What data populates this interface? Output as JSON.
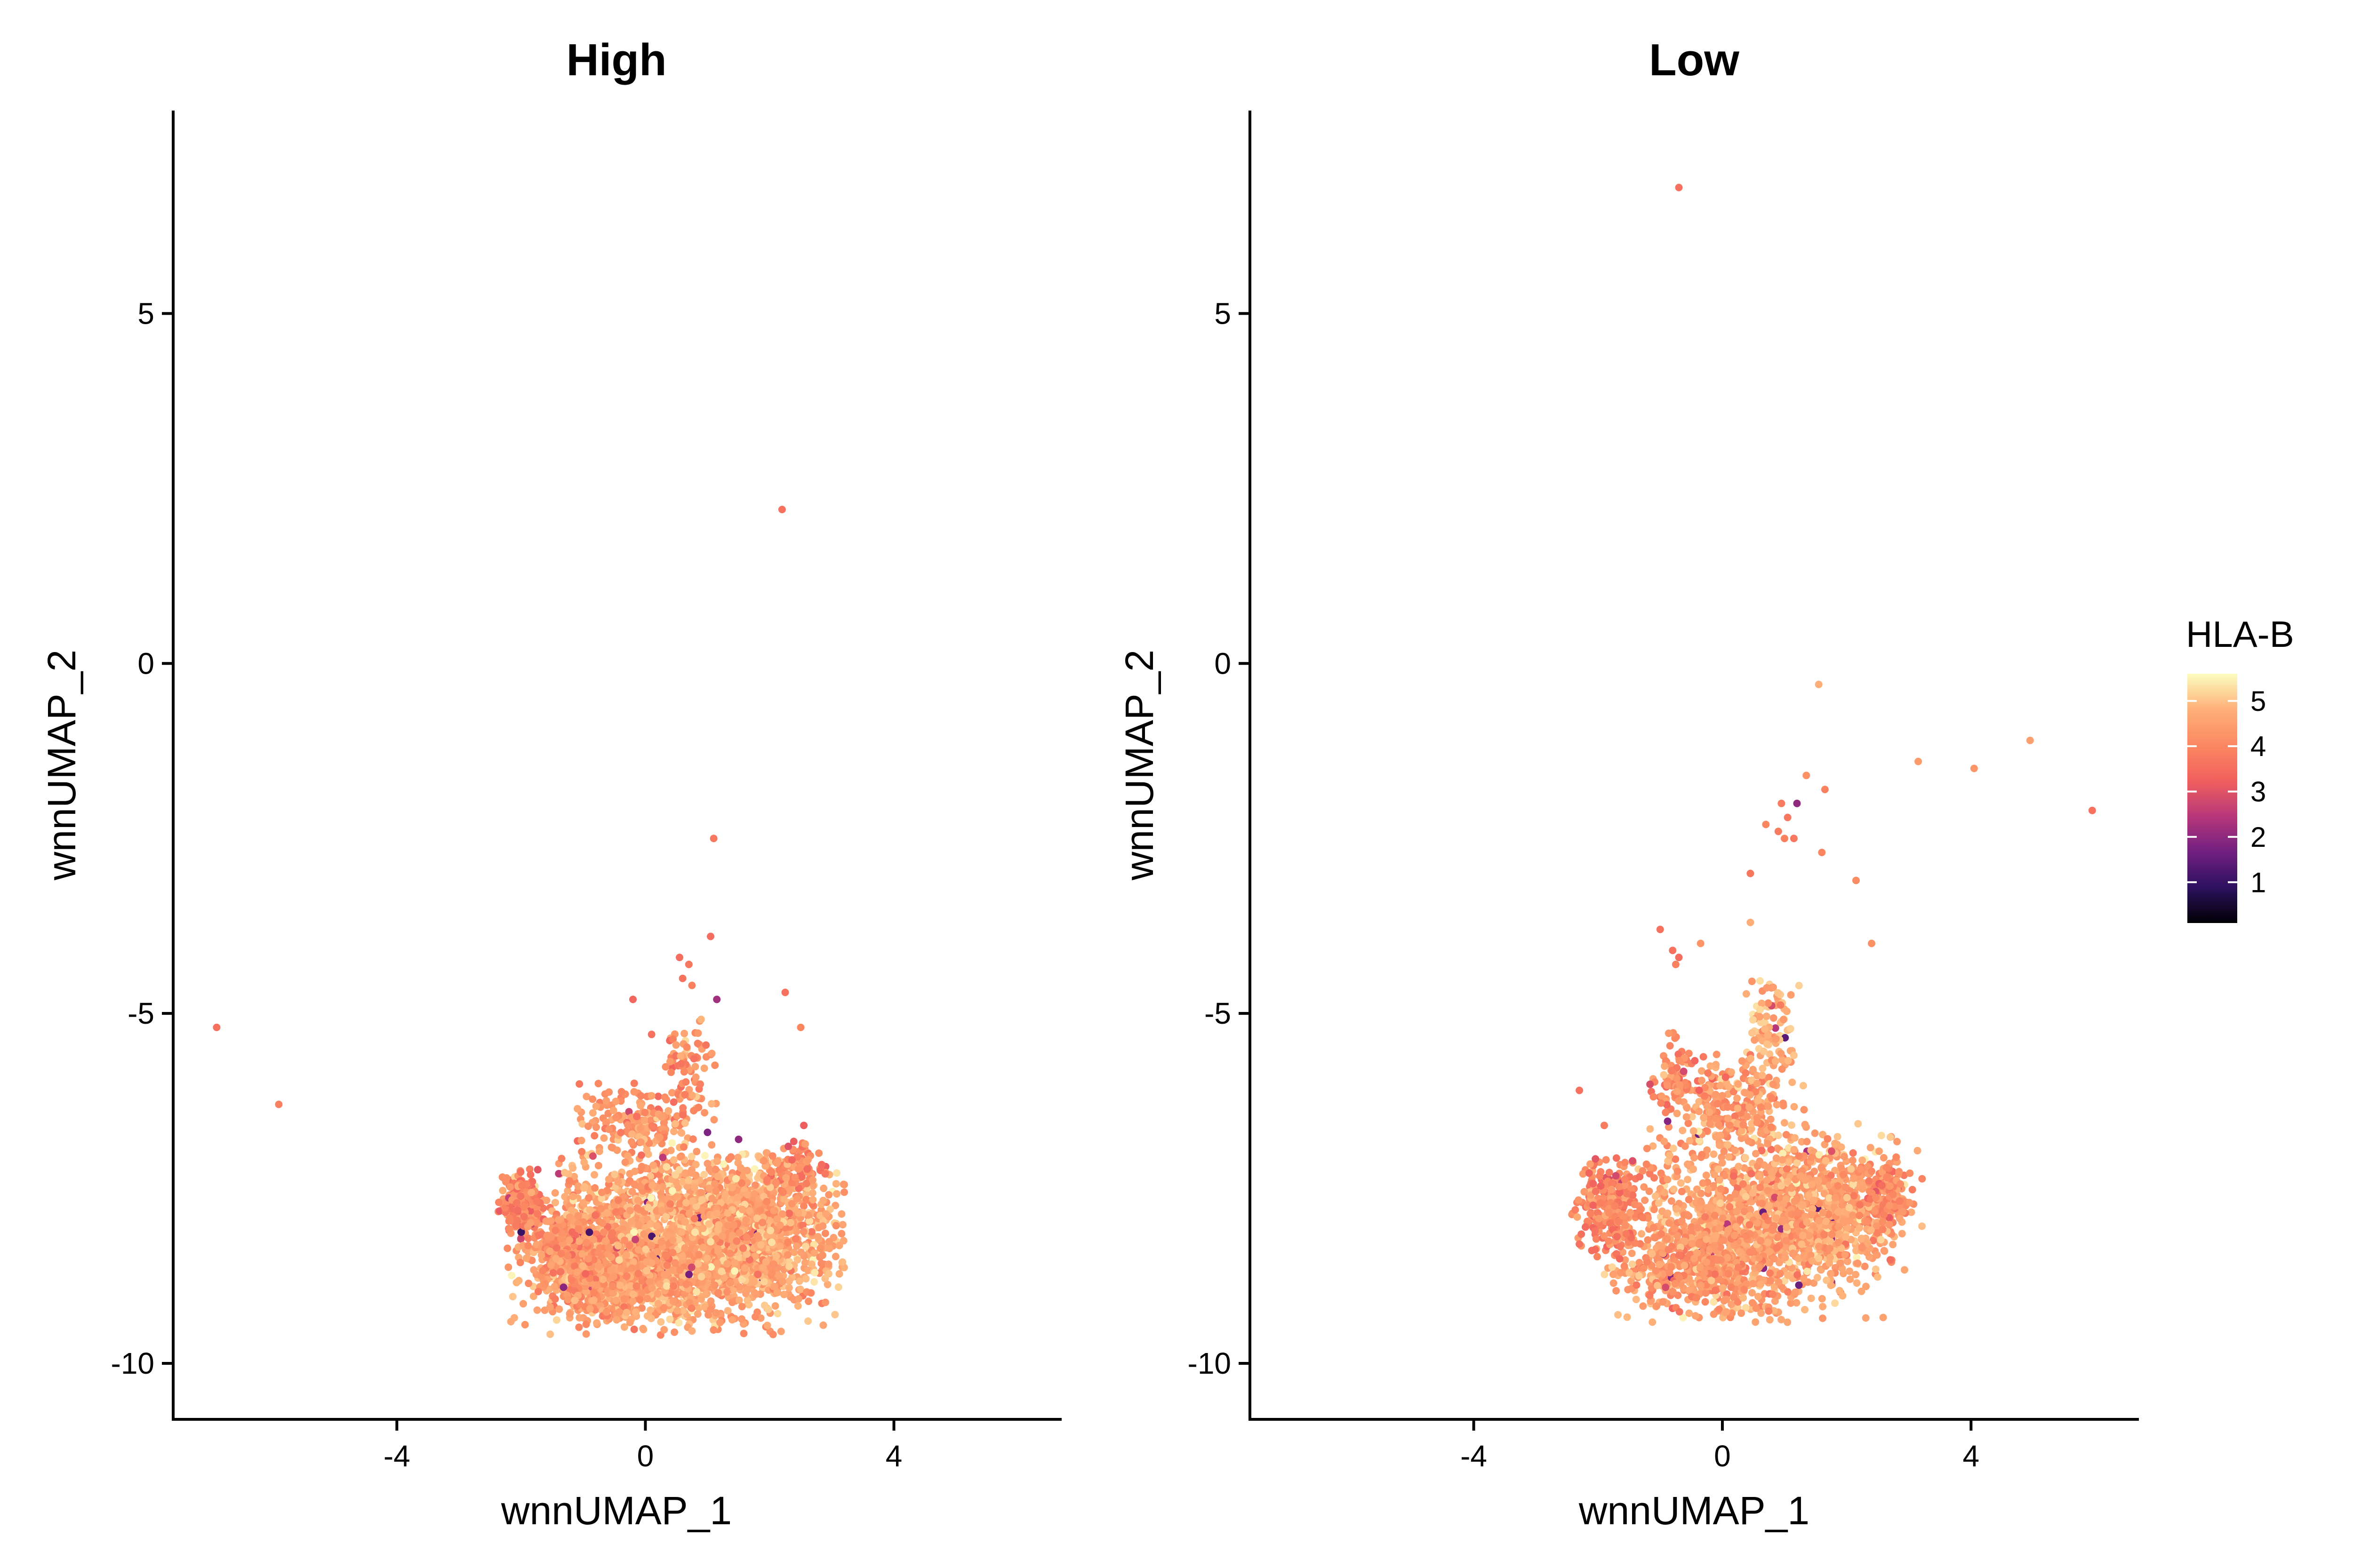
{
  "chart_data": [
    {
      "type": "scatter",
      "title": "High",
      "xlabel": "wnnUMAP_1",
      "ylabel": "wnnUMAP_2",
      "xlim": [
        -7.6,
        6.7
      ],
      "ylim": [
        -10.8,
        7.9
      ],
      "xticks": [
        -4,
        0,
        4
      ],
      "yticks": [
        5,
        0,
        -5,
        -10
      ],
      "grid": false,
      "outliers": [
        {
          "x": -6.9,
          "y": -5.2,
          "v": 3.6
        },
        {
          "x": -5.9,
          "y": -6.3,
          "v": 3.9
        },
        {
          "x": 2.2,
          "y": 2.2,
          "v": 3.6
        },
        {
          "x": 1.1,
          "y": -2.5,
          "v": 3.7
        },
        {
          "x": 1.05,
          "y": -3.9,
          "v": 3.5
        },
        {
          "x": 2.25,
          "y": -4.7,
          "v": 3.6
        },
        {
          "x": 0.55,
          "y": -4.2,
          "v": 3.5
        },
        {
          "x": 0.7,
          "y": -4.3,
          "v": 3.7
        },
        {
          "x": 0.6,
          "y": -4.5,
          "v": 3.6
        },
        {
          "x": 0.75,
          "y": -4.6,
          "v": 3.9
        },
        {
          "x": 1.15,
          "y": -4.8,
          "v": 2.2
        },
        {
          "x": -0.2,
          "y": -4.8,
          "v": 3.4
        },
        {
          "x": 2.5,
          "y": -5.2,
          "v": 4.0
        },
        {
          "x": 0.1,
          "y": -5.3,
          "v": 3.6
        },
        {
          "x": 1.0,
          "y": -6.7,
          "v": 1.8
        },
        {
          "x": 1.5,
          "y": -6.8,
          "v": 2.0
        },
        {
          "x": 2.55,
          "y": -6.6,
          "v": 3.2
        },
        {
          "x": 2.3,
          "y": -6.9,
          "v": 3.0
        }
      ],
      "clusters": [
        {
          "cx": 0.5,
          "cy": -8.3,
          "rx": 2.1,
          "ry": 1.0,
          "n": 2400,
          "vmean": 4.6
        },
        {
          "cx": 1.7,
          "cy": -8.0,
          "rx": 1.2,
          "ry": 0.8,
          "n": 700,
          "vmean": 4.6
        },
        {
          "cx": -0.5,
          "cy": -8.8,
          "rx": 1.0,
          "ry": 0.5,
          "n": 500,
          "vmean": 4.4
        },
        {
          "cx": -2.0,
          "cy": -7.7,
          "rx": 0.3,
          "ry": 0.4,
          "n": 200,
          "vmean": 3.9
        },
        {
          "cx": -1.3,
          "cy": -8.3,
          "rx": 0.6,
          "ry": 0.35,
          "n": 180,
          "vmean": 4.2
        },
        {
          "cx": 0.0,
          "cy": -6.6,
          "rx": 0.9,
          "ry": 0.5,
          "n": 220,
          "vmean": 4.3
        },
        {
          "cx": 0.7,
          "cy": -5.6,
          "rx": 0.35,
          "ry": 0.5,
          "n": 60,
          "vmean": 4.2
        },
        {
          "cx": 2.4,
          "cy": -7.2,
          "rx": 0.4,
          "ry": 0.3,
          "n": 80,
          "vmean": 4.0
        }
      ]
    },
    {
      "type": "scatter",
      "title": "Low",
      "xlabel": "wnnUMAP_1",
      "ylabel": "wnnUMAP_2",
      "xlim": [
        -7.6,
        6.7
      ],
      "ylim": [
        -10.8,
        7.9
      ],
      "xticks": [
        -4,
        0,
        4
      ],
      "yticks": [
        5,
        0,
        -5,
        -10
      ],
      "grid": false,
      "outliers": [
        {
          "x": -0.7,
          "y": 6.8,
          "v": 3.6
        },
        {
          "x": 1.55,
          "y": -0.3,
          "v": 4.8
        },
        {
          "x": 4.95,
          "y": -1.1,
          "v": 4.5
        },
        {
          "x": 3.15,
          "y": -1.4,
          "v": 4.4
        },
        {
          "x": 4.05,
          "y": -1.5,
          "v": 4.3
        },
        {
          "x": 5.95,
          "y": -2.1,
          "v": 3.6
        },
        {
          "x": 1.35,
          "y": -1.6,
          "v": 4.2
        },
        {
          "x": 1.65,
          "y": -1.8,
          "v": 3.9
        },
        {
          "x": 0.95,
          "y": -2.0,
          "v": 3.8
        },
        {
          "x": 1.2,
          "y": -2.0,
          "v": 2.0
        },
        {
          "x": 1.05,
          "y": -2.2,
          "v": 3.7
        },
        {
          "x": 0.7,
          "y": -2.3,
          "v": 4.0
        },
        {
          "x": 0.9,
          "y": -2.4,
          "v": 3.8
        },
        {
          "x": 1.0,
          "y": -2.5,
          "v": 3.9
        },
        {
          "x": 1.15,
          "y": -2.5,
          "v": 3.7
        },
        {
          "x": 1.6,
          "y": -2.7,
          "v": 4.0
        },
        {
          "x": 0.45,
          "y": -3.0,
          "v": 3.7
        },
        {
          "x": 2.15,
          "y": -3.1,
          "v": 4.1
        },
        {
          "x": 0.45,
          "y": -3.7,
          "v": 4.8
        },
        {
          "x": -1.0,
          "y": -3.8,
          "v": 3.6
        },
        {
          "x": -0.35,
          "y": -4.0,
          "v": 4.3
        },
        {
          "x": 2.4,
          "y": -4.0,
          "v": 4.2
        },
        {
          "x": -0.8,
          "y": -4.1,
          "v": 3.6
        },
        {
          "x": -0.7,
          "y": -4.2,
          "v": 3.5
        },
        {
          "x": -0.75,
          "y": -4.3,
          "v": 3.9
        },
        {
          "x": -2.3,
          "y": -6.1,
          "v": 3.6
        },
        {
          "x": -1.9,
          "y": -6.6,
          "v": 3.8
        }
      ],
      "clusters": [
        {
          "cx": 0.6,
          "cy": -8.0,
          "rx": 1.8,
          "ry": 1.1,
          "n": 1300,
          "vmean": 4.55
        },
        {
          "cx": 1.8,
          "cy": -7.7,
          "rx": 1.1,
          "ry": 0.7,
          "n": 450,
          "vmean": 4.5
        },
        {
          "cx": -0.5,
          "cy": -8.6,
          "rx": 1.1,
          "ry": 0.6,
          "n": 400,
          "vmean": 4.35
        },
        {
          "cx": -1.8,
          "cy": -7.8,
          "rx": 0.5,
          "ry": 0.6,
          "n": 260,
          "vmean": 4.0
        },
        {
          "cx": 0.2,
          "cy": -6.3,
          "rx": 0.9,
          "ry": 0.6,
          "n": 280,
          "vmean": 4.4
        },
        {
          "cx": 0.8,
          "cy": -5.2,
          "rx": 0.35,
          "ry": 0.6,
          "n": 90,
          "vmean": 4.7
        },
        {
          "cx": -0.8,
          "cy": -5.9,
          "rx": 0.4,
          "ry": 0.5,
          "n": 60,
          "vmean": 4.0
        },
        {
          "cx": 2.7,
          "cy": -7.6,
          "rx": 0.35,
          "ry": 0.4,
          "n": 90,
          "vmean": 4.0
        }
      ]
    }
  ],
  "legend": {
    "title": "HLA-B",
    "ticks": [
      5,
      4,
      3,
      2,
      1
    ],
    "vmin": 0.1,
    "vmax": 5.6,
    "palette": [
      "#000004",
      "#2c115f",
      "#721f81",
      "#b73779",
      "#f1605d",
      "#fb8861",
      "#feb078",
      "#fcfdbf"
    ],
    "placement": "right"
  }
}
